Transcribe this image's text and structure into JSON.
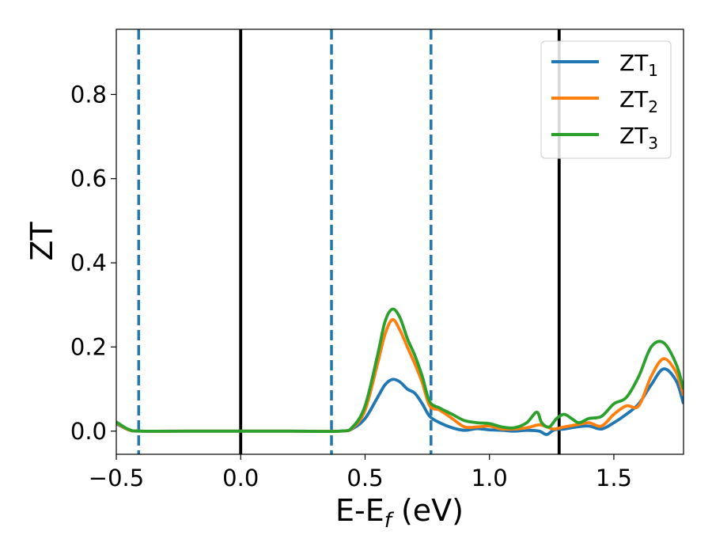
{
  "chart_data": {
    "type": "line",
    "xlabel": "E-E",
    "xlabel_sub": "f",
    "xlabel_unit": " (eV)",
    "ylabel": "ZT",
    "xlim": [
      -0.5,
      1.78
    ],
    "ylim": [
      -0.055,
      0.955
    ],
    "xticks": [
      -0.5,
      0.0,
      0.5,
      1.0,
      1.5
    ],
    "xtick_labels": [
      "−0.5",
      "0.0",
      "0.5",
      "1.0",
      "1.5"
    ],
    "yticks": [
      0.0,
      0.2,
      0.4,
      0.6,
      0.8
    ],
    "ytick_labels": [
      "0.0",
      "0.2",
      "0.4",
      "0.6",
      "0.8"
    ],
    "grid": false,
    "legend_position": "top-right",
    "vlines": [
      {
        "x": -0.41,
        "style": "dashed",
        "color": "#1f77b4"
      },
      {
        "x": 0.0,
        "style": "solid",
        "color": "#000000"
      },
      {
        "x": 0.365,
        "style": "dashed",
        "color": "#1f77b4"
      },
      {
        "x": 0.765,
        "style": "dashed",
        "color": "#1f77b4"
      },
      {
        "x": 1.28,
        "style": "solid",
        "color": "#000000"
      }
    ],
    "series": [
      {
        "name": "ZT",
        "sub": "1",
        "color": "#1f77b4",
        "x": [
          -0.5,
          -0.45,
          -0.4,
          -0.2,
          0.0,
          0.2,
          0.4,
          0.45,
          0.5,
          0.55,
          0.58,
          0.61,
          0.64,
          0.67,
          0.7,
          0.73,
          0.76,
          0.8,
          0.85,
          0.9,
          0.95,
          1.0,
          1.05,
          1.1,
          1.15,
          1.2,
          1.23,
          1.26,
          1.3,
          1.35,
          1.4,
          1.45,
          1.5,
          1.55,
          1.6,
          1.65,
          1.7,
          1.75,
          1.78
        ],
        "y": [
          0.018,
          0.003,
          0.0,
          0.0,
          0.0,
          0.0,
          0.0,
          0.006,
          0.03,
          0.08,
          0.11,
          0.123,
          0.117,
          0.1,
          0.09,
          0.065,
          0.035,
          0.02,
          0.008,
          0.002,
          0.006,
          0.003,
          0.002,
          0.0,
          0.002,
          0.0,
          -0.008,
          0.003,
          0.005,
          0.01,
          0.012,
          0.005,
          0.02,
          0.04,
          0.065,
          0.11,
          0.148,
          0.12,
          0.065
        ]
      },
      {
        "name": "ZT",
        "sub": "2",
        "color": "#ff7f0e",
        "x": [
          -0.5,
          -0.45,
          -0.4,
          -0.2,
          0.0,
          0.2,
          0.4,
          0.45,
          0.5,
          0.55,
          0.58,
          0.61,
          0.64,
          0.67,
          0.7,
          0.73,
          0.76,
          0.8,
          0.85,
          0.9,
          0.95,
          1.0,
          1.05,
          1.1,
          1.15,
          1.2,
          1.23,
          1.26,
          1.3,
          1.35,
          1.4,
          1.45,
          1.5,
          1.55,
          1.6,
          1.65,
          1.7,
          1.75,
          1.78
        ],
        "y": [
          0.02,
          0.003,
          0.0,
          0.0,
          0.0,
          0.0,
          0.0,
          0.008,
          0.05,
          0.16,
          0.23,
          0.265,
          0.24,
          0.2,
          0.16,
          0.115,
          0.06,
          0.05,
          0.03,
          0.01,
          0.01,
          0.012,
          0.005,
          0.005,
          0.008,
          0.015,
          0.01,
          0.005,
          0.01,
          0.015,
          0.02,
          0.012,
          0.04,
          0.06,
          0.06,
          0.13,
          0.172,
          0.14,
          0.085
        ]
      },
      {
        "name": "ZT",
        "sub": "3",
        "color": "#2ca02c",
        "x": [
          -0.5,
          -0.45,
          -0.4,
          -0.2,
          0.0,
          0.2,
          0.4,
          0.45,
          0.5,
          0.55,
          0.58,
          0.61,
          0.64,
          0.67,
          0.7,
          0.73,
          0.76,
          0.8,
          0.85,
          0.9,
          0.95,
          1.0,
          1.05,
          1.1,
          1.15,
          1.19,
          1.21,
          1.24,
          1.27,
          1.3,
          1.33,
          1.36,
          1.4,
          1.45,
          1.5,
          1.55,
          1.6,
          1.65,
          1.7,
          1.75,
          1.78
        ],
        "y": [
          0.022,
          0.004,
          0.0,
          0.0,
          0.0,
          0.0,
          0.0,
          0.01,
          0.06,
          0.18,
          0.26,
          0.29,
          0.27,
          0.22,
          0.18,
          0.13,
          0.07,
          0.055,
          0.04,
          0.025,
          0.02,
          0.018,
          0.01,
          0.008,
          0.02,
          0.045,
          0.02,
          0.01,
          0.03,
          0.04,
          0.03,
          0.02,
          0.03,
          0.035,
          0.065,
          0.08,
          0.13,
          0.2,
          0.21,
          0.16,
          0.1
        ]
      }
    ]
  }
}
